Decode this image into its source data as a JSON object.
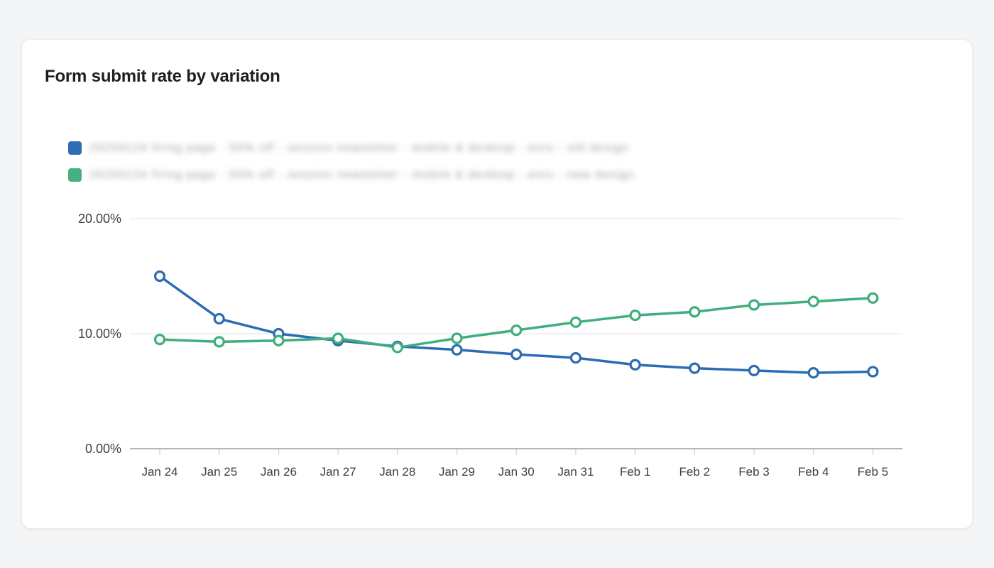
{
  "card": {
    "title": "Form submit rate by variation"
  },
  "legend": {
    "items": [
      {
        "color": "#2e6cb4",
        "redacted": true,
        "blurred_label": "20250124 firing page  -  50% off  -  session newsletter  -  mobile & desktop  -  en/u  -  old design"
      },
      {
        "color": "#48b080",
        "redacted": true,
        "blurred_label": "20250124 firing page  -  50% off  -  session newsletter  -  mobile & desktop  -  en/u  -  new design"
      }
    ]
  },
  "chart_data": {
    "type": "line",
    "title": "Form submit rate by variation",
    "x": [
      "Jan 24",
      "Jan 25",
      "Jan 26",
      "Jan 27",
      "Jan 28",
      "Jan 29",
      "Jan 30",
      "Jan 31",
      "Feb 1",
      "Feb 2",
      "Feb 3",
      "Feb 4",
      "Feb 5"
    ],
    "series": [
      {
        "name": "Variation A (legend label blurred)",
        "color": "#2b6cb3",
        "values": [
          15.0,
          11.3,
          10.0,
          9.4,
          8.9,
          8.6,
          8.2,
          7.9,
          7.3,
          7.0,
          6.8,
          6.6,
          6.7
        ]
      },
      {
        "name": "Variation B (legend label blurred)",
        "color": "#41ae7d",
        "values": [
          9.5,
          9.3,
          9.4,
          9.6,
          8.8,
          9.6,
          10.3,
          11.0,
          11.6,
          11.9,
          12.5,
          12.8,
          13.1
        ]
      }
    ],
    "unit": "%",
    "ylim": [
      0,
      20
    ],
    "yticks": [
      {
        "value": 0,
        "label": "0.00%"
      },
      {
        "value": 10,
        "label": "10.00%"
      },
      {
        "value": 20,
        "label": "20.00%"
      }
    ],
    "grid": true,
    "legend_position": "top-left",
    "marker": "open-circle",
    "colors": {
      "gridline": "#ececee",
      "axis_line": "#b4b7bb",
      "tick_mark": "#d6d8da",
      "tick_text": "#3c4043"
    }
  }
}
